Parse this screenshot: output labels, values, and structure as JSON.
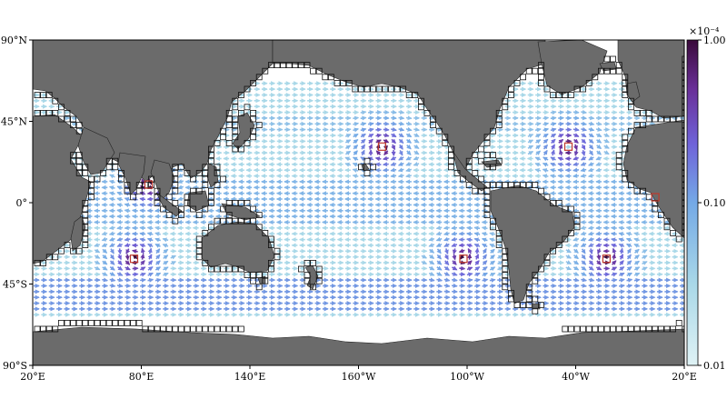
{
  "map": {
    "projection": "plate-carree",
    "lon_range": [
      20,
      380
    ],
    "lat_range": [
      -90,
      90
    ],
    "land_color": "#6b6b6b",
    "ocean_color": "#ffffff",
    "box_color": "#111111",
    "lon_ticks": [
      {
        "lon": 20,
        "label": "20°E"
      },
      {
        "lon": 80,
        "label": "80°E"
      },
      {
        "lon": 140,
        "label": "140°E"
      },
      {
        "lon": 200,
        "label": "160°W"
      },
      {
        "lon": 260,
        "label": "100°W"
      },
      {
        "lon": 320,
        "label": "40°W"
      },
      {
        "lon": 380,
        "label": "20°E"
      }
    ],
    "lat_ticks": [
      {
        "lat": 90,
        "label": "90°N"
      },
      {
        "lat": 45,
        "label": "45°N"
      },
      {
        "lat": 0,
        "label": "0°"
      },
      {
        "lat": -45,
        "label": "45°S"
      },
      {
        "lat": -90,
        "label": "90°S"
      }
    ],
    "gyre_markers": [
      {
        "name": "north-pacific-gyre",
        "lon": 213,
        "lat": 31
      },
      {
        "name": "south-pacific-gyre",
        "lon": 258,
        "lat": -31
      },
      {
        "name": "north-atlantic-gyre",
        "lon": 316,
        "lat": 31
      },
      {
        "name": "south-atlantic-gyre",
        "lon": 337,
        "lat": -31
      },
      {
        "name": "indian-ocean-gyre",
        "lon": 76,
        "lat": -31
      },
      {
        "name": "bay-of-bengal",
        "lon": 84,
        "lat": 10
      },
      {
        "name": "gulf-of-guinea",
        "lon": 4,
        "lat": 3
      }
    ]
  },
  "colorbar": {
    "exponent_label": "×10⁻⁴",
    "scale": "log",
    "range": [
      0.01,
      1.0
    ],
    "ticks": [
      {
        "value": 1.0,
        "label": "1.00"
      },
      {
        "value": 0.1,
        "label": "0.10"
      },
      {
        "value": 0.01,
        "label": "0.01"
      }
    ],
    "colors": [
      "#dff2f5",
      "#a9d8e8",
      "#74a9e6",
      "#6f63d9",
      "#6a2f98",
      "#3a0a3a"
    ]
  }
}
